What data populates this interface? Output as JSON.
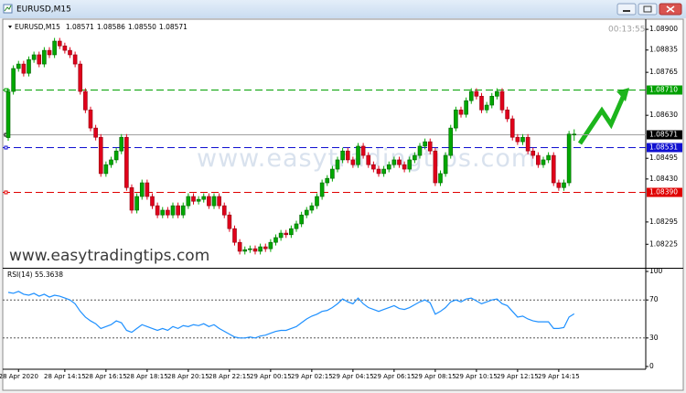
{
  "window": {
    "title": "EURUSD,M15",
    "timer": "00:13:55",
    "watermark": "www.easytradingtips.com",
    "watermark_faint": "www.easytradingtips.com"
  },
  "chart_data": [
    {
      "type": "candlestick",
      "header": {
        "symbol": "EURUSD,M15",
        "ohlc": [
          "1.08571",
          "1.08586",
          "1.08550",
          "1.08571"
        ]
      },
      "up_color": "#00a800",
      "down_color": "#e0001b",
      "categories": [
        null,
        null,
        "28 Apr 2020",
        null,
        null,
        null,
        null,
        null,
        null,
        null,
        null,
        "28 Apr 14:15",
        null,
        null,
        null,
        null,
        null,
        null,
        null,
        "28 Apr 16:15",
        null,
        null,
        null,
        null,
        null,
        null,
        null,
        "28 Apr 18:15",
        null,
        null,
        null,
        null,
        null,
        null,
        null,
        "28 Apr 20:15",
        null,
        null,
        null,
        null,
        null,
        null,
        null,
        "28 Apr 22:15",
        null,
        null,
        null,
        null,
        null,
        null,
        null,
        "29 Apr 00:15",
        null,
        null,
        null,
        null,
        null,
        null,
        null,
        "29 Apr 02:15",
        null,
        null,
        null,
        null,
        null,
        null,
        null,
        "29 Apr 04:15",
        null,
        null,
        null,
        null,
        null,
        null,
        null,
        "29 Apr 06:15",
        null,
        null,
        null,
        null,
        null,
        null,
        null,
        "29 Apr 08:15",
        null,
        null,
        null,
        null,
        null,
        null,
        null,
        "29 Apr 10:15",
        null,
        null,
        null,
        null,
        null,
        null,
        null,
        "29 Apr 12:15",
        null,
        null,
        null,
        null,
        null,
        null,
        null,
        "29 Apr 14:15",
        null,
        null,
        null
      ],
      "open": [
        1.0856,
        1.08705,
        1.08777,
        1.08791,
        1.08762,
        1.08805,
        1.0882,
        1.08791,
        1.08834,
        1.0882,
        1.08863,
        1.08848,
        1.08834,
        1.0882,
        1.08791,
        1.08705,
        1.08647,
        1.0859,
        1.08561,
        1.08447,
        1.08475,
        1.0849,
        1.08518,
        1.08561,
        1.08403,
        1.08332,
        1.08375,
        1.08418,
        1.08375,
        1.08346,
        1.08317,
        1.08332,
        1.08317,
        1.08346,
        1.08317,
        1.08346,
        1.08375,
        1.0836,
        1.08366,
        1.08375,
        1.08346,
        1.08375,
        1.08346,
        1.08317,
        1.08274,
        1.08231,
        1.08203,
        1.08208,
        1.08211,
        1.08203,
        1.08217,
        1.08211,
        1.08231,
        1.08246,
        1.0826,
        1.08255,
        1.08274,
        1.08289,
        1.08317,
        1.08332,
        1.08346,
        1.08375,
        1.08418,
        1.08432,
        1.08461,
        1.0849,
        1.08518,
        1.0849,
        1.08475,
        1.08533,
        1.08504,
        1.08475,
        1.08461,
        1.08447,
        1.08461,
        1.08475,
        1.0849,
        1.08475,
        1.08461,
        1.0849,
        1.08504,
        1.08533,
        1.08547,
        1.08518,
        1.08418,
        1.08447,
        1.08504,
        1.0859,
        1.08647,
        1.08633,
        1.08676,
        1.08705,
        1.0869,
        1.08647,
        1.08662,
        1.0869,
        1.08705,
        1.08647,
        1.08619,
        1.08561,
        1.08547,
        1.08561,
        1.08518,
        1.08504,
        1.08475,
        1.0849,
        1.08504,
        1.08418,
        1.08403,
        1.08418,
        1.08571
      ],
      "high": [
        1.08715,
        1.08787,
        1.08801,
        1.08801,
        1.08815,
        1.0883,
        1.0883,
        1.08844,
        1.08844,
        1.08873,
        1.08873,
        1.08858,
        1.08844,
        1.0883,
        1.08801,
        1.08715,
        1.08657,
        1.086,
        1.08571,
        1.08485,
        1.085,
        1.08528,
        1.08571,
        1.08571,
        1.08413,
        1.08385,
        1.08428,
        1.08428,
        1.08385,
        1.08356,
        1.08342,
        1.08342,
        1.08356,
        1.08356,
        1.08356,
        1.08385,
        1.08385,
        1.08376,
        1.08385,
        1.08385,
        1.08385,
        1.08385,
        1.08356,
        1.08327,
        1.08284,
        1.08241,
        1.08218,
        1.08221,
        1.08221,
        1.08227,
        1.08227,
        1.08241,
        1.08256,
        1.0827,
        1.0827,
        1.08284,
        1.08299,
        1.08327,
        1.08342,
        1.08356,
        1.08385,
        1.08428,
        1.08442,
        1.08471,
        1.085,
        1.08528,
        1.08528,
        1.085,
        1.08543,
        1.08543,
        1.08514,
        1.08485,
        1.08471,
        1.08471,
        1.08485,
        1.085,
        1.085,
        1.08485,
        1.085,
        1.08514,
        1.08543,
        1.08557,
        1.08557,
        1.08528,
        1.08457,
        1.08514,
        1.086,
        1.08657,
        1.08657,
        1.08686,
        1.08715,
        1.08715,
        1.087,
        1.08672,
        1.087,
        1.08715,
        1.08715,
        1.08657,
        1.08629,
        1.08571,
        1.08571,
        1.08571,
        1.08528,
        1.08514,
        1.085,
        1.08514,
        1.08514,
        1.08428,
        1.08428,
        1.08581,
        1.08586
      ],
      "low": [
        1.0855,
        1.08695,
        1.08767,
        1.08752,
        1.08752,
        1.08795,
        1.08781,
        1.08781,
        1.0881,
        1.0881,
        1.08838,
        1.08824,
        1.0881,
        1.08781,
        1.08695,
        1.08637,
        1.0858,
        1.08551,
        1.08437,
        1.08437,
        1.08465,
        1.0848,
        1.08508,
        1.08393,
        1.08322,
        1.08322,
        1.08365,
        1.08365,
        1.08336,
        1.08307,
        1.08307,
        1.08307,
        1.08307,
        1.08307,
        1.08307,
        1.08336,
        1.0835,
        1.0835,
        1.08356,
        1.08336,
        1.08336,
        1.08336,
        1.08307,
        1.08264,
        1.08221,
        1.08193,
        1.08193,
        1.08198,
        1.08193,
        1.08193,
        1.08201,
        1.08201,
        1.08221,
        1.08236,
        1.08245,
        1.08245,
        1.08264,
        1.08279,
        1.08307,
        1.08322,
        1.08336,
        1.08365,
        1.08408,
        1.08422,
        1.08451,
        1.0848,
        1.0848,
        1.08465,
        1.08465,
        1.08494,
        1.08465,
        1.08451,
        1.08437,
        1.08437,
        1.08451,
        1.08465,
        1.08465,
        1.08451,
        1.08451,
        1.0848,
        1.08494,
        1.08523,
        1.08508,
        1.08408,
        1.08408,
        1.08437,
        1.08494,
        1.0858,
        1.08623,
        1.08623,
        1.08666,
        1.0868,
        1.08637,
        1.08637,
        1.08652,
        1.0868,
        1.08637,
        1.08609,
        1.08551,
        1.08537,
        1.08537,
        1.08508,
        1.08494,
        1.08465,
        1.08465,
        1.0848,
        1.08408,
        1.08393,
        1.08393,
        1.08408,
        1.0855
      ],
      "close": [
        1.08705,
        1.08777,
        1.08791,
        1.08762,
        1.08805,
        1.0882,
        1.08791,
        1.08834,
        1.0882,
        1.08863,
        1.08848,
        1.08834,
        1.0882,
        1.08791,
        1.08705,
        1.08647,
        1.0859,
        1.08561,
        1.08447,
        1.08475,
        1.0849,
        1.08518,
        1.08561,
        1.08403,
        1.08332,
        1.08375,
        1.08418,
        1.08375,
        1.08346,
        1.08317,
        1.08332,
        1.08317,
        1.08346,
        1.08317,
        1.08346,
        1.08375,
        1.0836,
        1.08366,
        1.08375,
        1.08346,
        1.08375,
        1.08346,
        1.08317,
        1.08274,
        1.08231,
        1.08203,
        1.08208,
        1.08211,
        1.08203,
        1.08217,
        1.08211,
        1.08231,
        1.08246,
        1.0826,
        1.08255,
        1.08274,
        1.08289,
        1.08317,
        1.08332,
        1.08346,
        1.08375,
        1.08418,
        1.08432,
        1.08461,
        1.0849,
        1.08518,
        1.0849,
        1.08475,
        1.08533,
        1.08504,
        1.08475,
        1.08461,
        1.08447,
        1.08461,
        1.08475,
        1.0849,
        1.08475,
        1.08461,
        1.0849,
        1.08504,
        1.08533,
        1.08547,
        1.08518,
        1.08418,
        1.08447,
        1.08504,
        1.0859,
        1.08647,
        1.08633,
        1.08676,
        1.08705,
        1.0869,
        1.08647,
        1.08662,
        1.0869,
        1.08705,
        1.08647,
        1.08619,
        1.08561,
        1.08547,
        1.08561,
        1.08518,
        1.08504,
        1.08475,
        1.0849,
        1.08504,
        1.08418,
        1.08403,
        1.08418,
        1.08571,
        1.08571
      ],
      "ylim": [
        1.08154,
        1.08929
      ],
      "yticks": [
        {
          "value": 1.089,
          "label": "1.08900"
        },
        {
          "value": 1.08835,
          "label": "1.08835"
        },
        {
          "value": 1.08765,
          "label": "1.08765"
        },
        {
          "value": 1.0863,
          "label": "1.08630"
        },
        {
          "value": 1.08495,
          "label": "1.08495"
        },
        {
          "value": 1.0843,
          "label": "1.08430"
        },
        {
          "value": 1.08295,
          "label": "1.08295"
        },
        {
          "value": 1.08225,
          "label": "1.08225"
        }
      ],
      "levels": [
        {
          "value": 1.0871,
          "label": "1.08710",
          "color": "#00a000",
          "style": "dashed"
        },
        {
          "value": 1.08571,
          "label": "1.08571",
          "color": "#000000",
          "style": "solid"
        },
        {
          "value": 1.08531,
          "label": "1.08531",
          "color": "#1010d0",
          "style": "dashed"
        },
        {
          "value": 1.0839,
          "label": "1.08390",
          "color": "#e00000",
          "style": "dashed"
        }
      ]
    },
    {
      "type": "line",
      "title": "RSI(14) 55.3638",
      "color": "#1e90ff",
      "values": [
        78,
        77,
        79,
        76,
        75,
        77,
        74,
        76,
        73,
        75,
        74,
        72,
        70,
        66,
        58,
        52,
        48,
        45,
        40,
        42,
        44,
        48,
        46,
        38,
        36,
        40,
        44,
        42,
        40,
        38,
        40,
        38,
        42,
        40,
        43,
        42,
        44,
        43,
        45,
        42,
        44,
        40,
        37,
        34,
        31,
        30,
        30,
        31,
        30,
        32,
        33,
        35,
        37,
        38,
        38,
        40,
        42,
        46,
        50,
        53,
        55,
        58,
        59,
        62,
        66,
        71,
        68,
        66,
        72,
        66,
        62,
        60,
        58,
        60,
        62,
        64,
        61,
        60,
        62,
        65,
        68,
        70,
        67,
        55,
        58,
        62,
        68,
        70,
        68,
        71,
        72,
        69,
        66,
        68,
        70,
        71,
        66,
        64,
        58,
        52,
        53,
        50,
        48,
        47,
        47,
        47,
        40,
        40,
        41,
        52,
        55.3638
      ],
      "ylim": [
        0,
        100
      ],
      "yticks": [
        100,
        70,
        30,
        0
      ],
      "grid": true
    }
  ]
}
